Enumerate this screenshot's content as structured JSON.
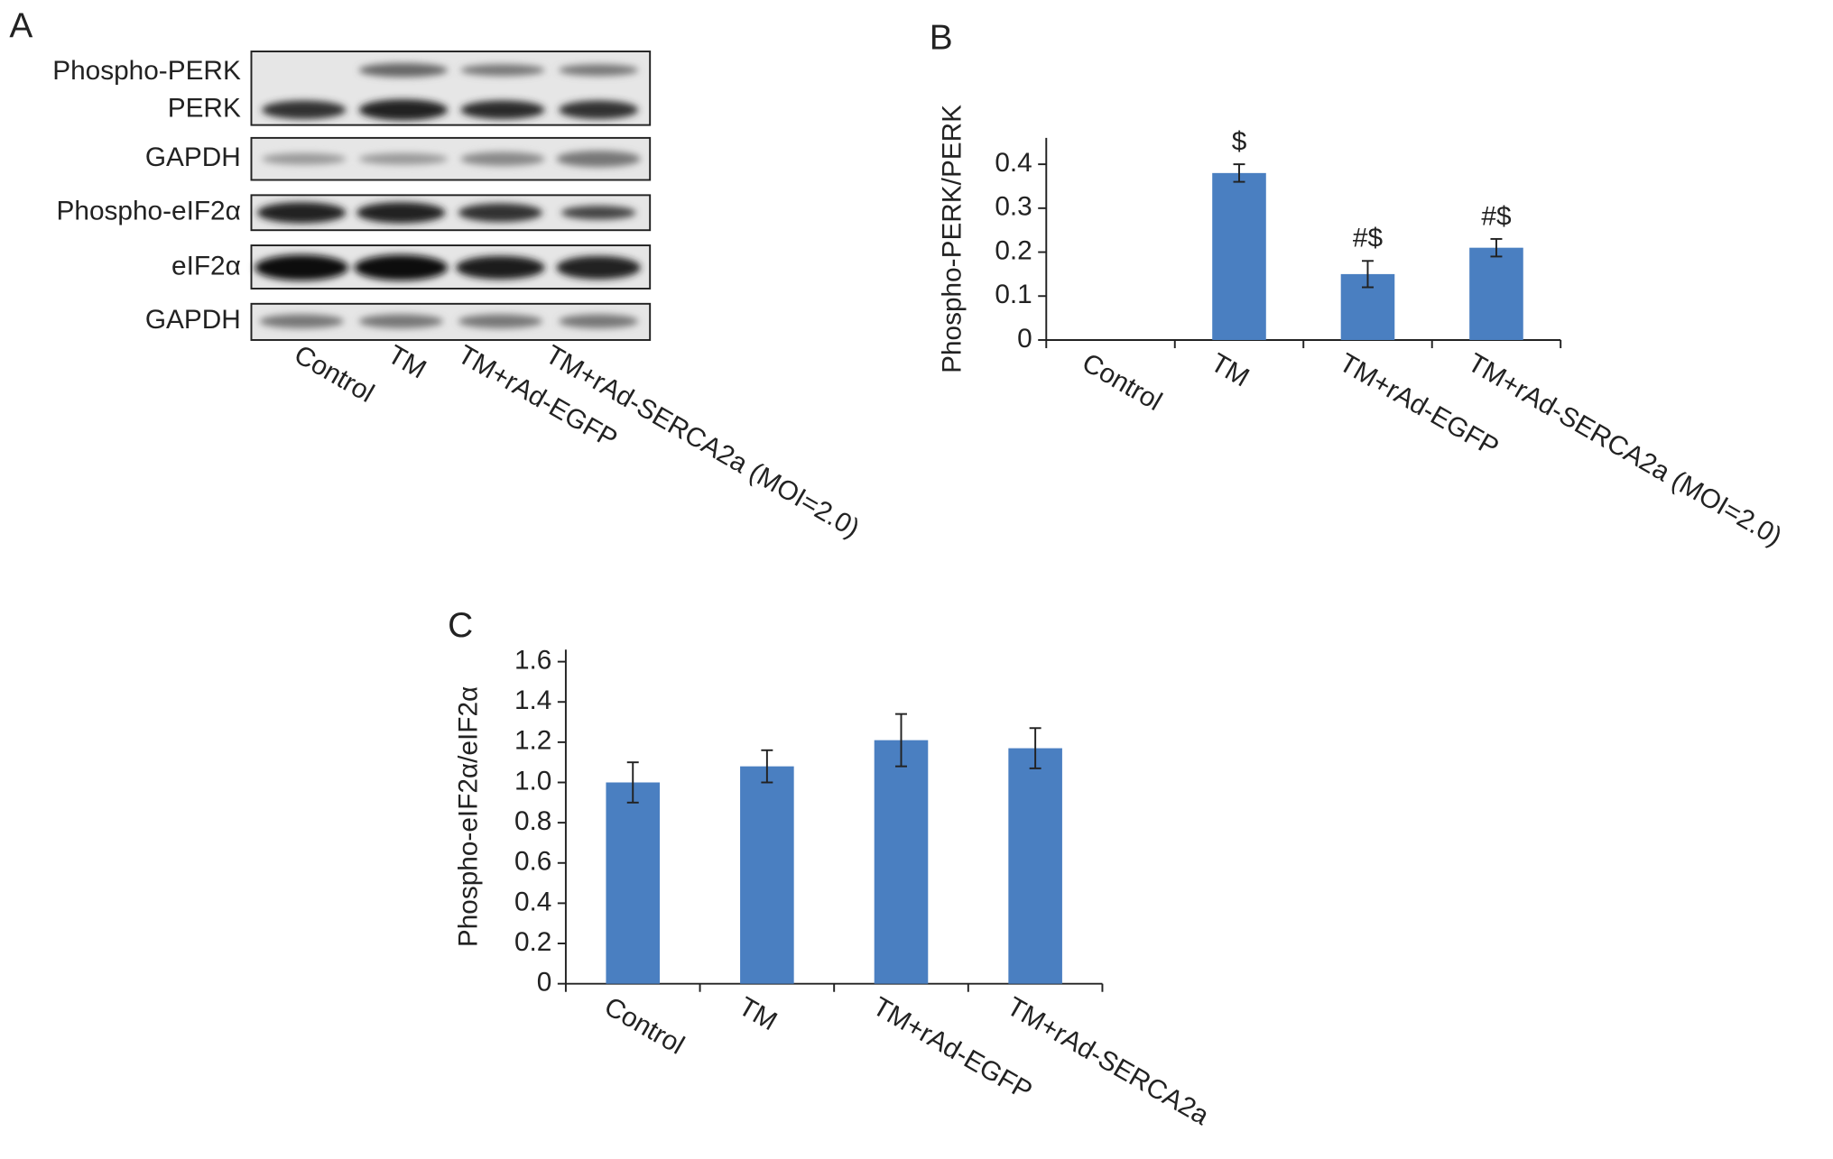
{
  "blot": {
    "panel_label": "A",
    "rows": [
      "Phospho-PERK",
      "PERK",
      "GAPDH",
      "Phospho-eIF2α",
      "eIF2α",
      "GAPDH"
    ],
    "lanes": [
      "Control",
      "TM",
      "TM+rAd-EGFP",
      "TM+rAd-SERCA2a (MOI=2.0)"
    ]
  },
  "chart_data": [
    {
      "type": "bar",
      "panel_label": "B",
      "y_label": "Phospho-PERK/PERK",
      "categories": [
        "Control",
        "TM",
        "TM+rAd-EGFP",
        "TM+rAd-SERCA2a (MOI=2.0)"
      ],
      "values": [
        0,
        0.38,
        0.15,
        0.21
      ],
      "errors": [
        null,
        0.02,
        0.03,
        0.02
      ],
      "annotations": [
        null,
        "$",
        "#$",
        "#$"
      ],
      "color": "#4a7fc1",
      "ylim": [
        0,
        0.46
      ],
      "yticks": [
        0,
        0.1,
        0.2,
        0.3,
        0.4
      ]
    },
    {
      "type": "bar",
      "panel_label": "C",
      "y_label": "Phospho-eIF2α/eIF2α",
      "categories": [
        "Control",
        "TM",
        "TM+rAd-EGFP",
        "TM+rAd-SERCA2a"
      ],
      "values": [
        1.0,
        1.08,
        1.21,
        1.17
      ],
      "errors": [
        0.1,
        0.08,
        0.13,
        0.1
      ],
      "color": "#4a7fc1",
      "ylim": [
        0,
        1.66
      ],
      "yticks": [
        0,
        0.2,
        0.4,
        0.6,
        0.8,
        {
          "value": 1,
          "label": "1.0"
        },
        1.2,
        1.4,
        1.6
      ]
    }
  ]
}
